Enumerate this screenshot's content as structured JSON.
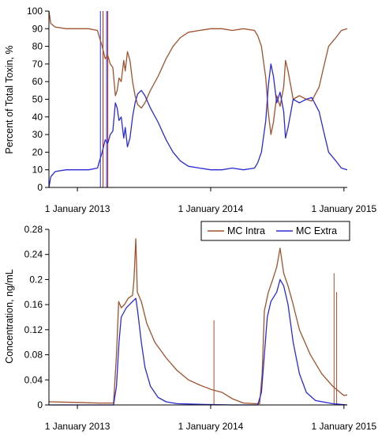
{
  "chart_data": [
    {
      "type": "line",
      "ylabel": "Percent of Total Toxin, %",
      "xlabel": "",
      "x_tick_labels": [
        "1 January 2013",
        "1 January 2014",
        "1 January 2015"
      ],
      "x_ticks": [
        "2013-01-01",
        "2014-01-01",
        "2015-01-01"
      ],
      "x_range": [
        "2012-10-15",
        "2015-01-10"
      ],
      "ylim": [
        0,
        100
      ],
      "y_ticks": [
        0,
        10,
        20,
        30,
        40,
        50,
        60,
        70,
        80,
        90,
        100
      ],
      "grid": false,
      "series": [
        {
          "name": "MC Intra",
          "color": "#a0522d",
          "points": [
            [
              "2012-10-15",
              100
            ],
            [
              "2012-10-20",
              93
            ],
            [
              "2012-11-01",
              91
            ],
            [
              "2012-12-01",
              90
            ],
            [
              "2013-01-01",
              90
            ],
            [
              "2013-02-01",
              90
            ],
            [
              "2013-02-25",
              89
            ],
            [
              "2013-03-01",
              86
            ],
            [
              "2013-03-10",
              80
            ],
            [
              "2013-03-18",
              73
            ],
            [
              "2013-03-25",
              75
            ],
            [
              "2013-04-01",
              70
            ],
            [
              "2013-04-08",
              68
            ],
            [
              "2013-04-15",
              52
            ],
            [
              "2013-04-20",
              55
            ],
            [
              "2013-04-25",
              62
            ],
            [
              "2013-05-01",
              60
            ],
            [
              "2013-05-08",
              72
            ],
            [
              "2013-05-12",
              66
            ],
            [
              "2013-05-18",
              77
            ],
            [
              "2013-05-25",
              72
            ],
            [
              "2013-06-01",
              60
            ],
            [
              "2013-06-08",
              52
            ],
            [
              "2013-06-15",
              47
            ],
            [
              "2013-06-25",
              45
            ],
            [
              "2013-07-05",
              48
            ],
            [
              "2013-07-20",
              55
            ],
            [
              "2013-08-10",
              63
            ],
            [
              "2013-09-01",
              73
            ],
            [
              "2013-09-20",
              80
            ],
            [
              "2013-10-10",
              85
            ],
            [
              "2013-11-01",
              88
            ],
            [
              "2013-12-01",
              89
            ],
            [
              "2014-01-01",
              90
            ],
            [
              "2014-02-01",
              90
            ],
            [
              "2014-03-01",
              89
            ],
            [
              "2014-04-01",
              90
            ],
            [
              "2014-05-01",
              89
            ],
            [
              "2014-05-10",
              86
            ],
            [
              "2014-05-20",
              80
            ],
            [
              "2014-06-01",
              62
            ],
            [
              "2014-06-08",
              42
            ],
            [
              "2014-06-15",
              30
            ],
            [
              "2014-06-22",
              37
            ],
            [
              "2014-07-01",
              52
            ],
            [
              "2014-07-10",
              46
            ],
            [
              "2014-07-20",
              57
            ],
            [
              "2014-07-25",
              72
            ],
            [
              "2014-08-01",
              66
            ],
            [
              "2014-08-08",
              58
            ],
            [
              "2014-08-15",
              50
            ],
            [
              "2014-09-01",
              52
            ],
            [
              "2014-09-20",
              50
            ],
            [
              "2014-10-05",
              49
            ],
            [
              "2014-10-15",
              53
            ],
            [
              "2014-10-25",
              57
            ],
            [
              "2014-11-05",
              67
            ],
            [
              "2014-11-20",
              80
            ],
            [
              "2014-12-10",
              85
            ],
            [
              "2014-12-25",
              89
            ],
            [
              "2015-01-10",
              90
            ]
          ]
        },
        {
          "name": "MC Extra",
          "color": "#2b2bd6",
          "points": [
            [
              "2012-10-15",
              0
            ],
            [
              "2012-10-20",
              6
            ],
            [
              "2012-11-01",
              9
            ],
            [
              "2012-12-01",
              10
            ],
            [
              "2013-01-01",
              10
            ],
            [
              "2013-02-01",
              10
            ],
            [
              "2013-02-25",
              11
            ],
            [
              "2013-03-01",
              14
            ],
            [
              "2013-03-10",
              20
            ],
            [
              "2013-03-18",
              27
            ],
            [
              "2013-03-25",
              25
            ],
            [
              "2013-04-01",
              30
            ],
            [
              "2013-04-08",
              32
            ],
            [
              "2013-04-15",
              48
            ],
            [
              "2013-04-20",
              45
            ],
            [
              "2013-04-25",
              38
            ],
            [
              "2013-05-01",
              40
            ],
            [
              "2013-05-08",
              28
            ],
            [
              "2013-05-12",
              34
            ],
            [
              "2013-05-18",
              23
            ],
            [
              "2013-05-25",
              28
            ],
            [
              "2013-06-01",
              40
            ],
            [
              "2013-06-08",
              48
            ],
            [
              "2013-06-15",
              53
            ],
            [
              "2013-06-25",
              55
            ],
            [
              "2013-07-05",
              52
            ],
            [
              "2013-07-20",
              45
            ],
            [
              "2013-08-10",
              37
            ],
            [
              "2013-09-01",
              27
            ],
            [
              "2013-09-20",
              20
            ],
            [
              "2013-10-10",
              15
            ],
            [
              "2013-11-01",
              12
            ],
            [
              "2013-12-01",
              11
            ],
            [
              "2014-01-01",
              10
            ],
            [
              "2014-02-01",
              10
            ],
            [
              "2014-03-01",
              11
            ],
            [
              "2014-04-01",
              10
            ],
            [
              "2014-05-01",
              11
            ],
            [
              "2014-05-10",
              14
            ],
            [
              "2014-05-20",
              20
            ],
            [
              "2014-06-01",
              38
            ],
            [
              "2014-06-08",
              58
            ],
            [
              "2014-06-15",
              70
            ],
            [
              "2014-06-22",
              63
            ],
            [
              "2014-07-01",
              48
            ],
            [
              "2014-07-10",
              54
            ],
            [
              "2014-07-20",
              43
            ],
            [
              "2014-07-25",
              28
            ],
            [
              "2014-08-01",
              34
            ],
            [
              "2014-08-08",
              42
            ],
            [
              "2014-08-15",
              50
            ],
            [
              "2014-09-01",
              48
            ],
            [
              "2014-09-20",
              50
            ],
            [
              "2014-10-05",
              51
            ],
            [
              "2014-10-15",
              47
            ],
            [
              "2014-10-25",
              43
            ],
            [
              "2014-11-05",
              33
            ],
            [
              "2014-11-20",
              20
            ],
            [
              "2014-12-10",
              15
            ],
            [
              "2014-12-25",
              11
            ],
            [
              "2015-01-10",
              10
            ]
          ]
        }
      ],
      "vertical_lines": [
        {
          "x": "2013-03-05",
          "color": "#2b2bd6"
        },
        {
          "x": "2013-03-12",
          "color": "#cc2222"
        },
        {
          "x": "2013-03-22",
          "color": "#2b2bd6"
        },
        {
          "x": "2013-03-25",
          "color": "#cc2222"
        }
      ]
    },
    {
      "type": "line",
      "ylabel": "Concentration, ng/mL",
      "xlabel": "",
      "x_tick_labels": [
        "1 January 2013",
        "1 January 2014",
        "1 January 2015"
      ],
      "x_ticks": [
        "2013-01-01",
        "2014-01-01",
        "2015-01-01"
      ],
      "x_range": [
        "2012-10-15",
        "2015-01-10"
      ],
      "ylim": [
        0,
        0.28
      ],
      "y_ticks": [
        "0",
        "0.04",
        "0.08",
        "0.12",
        "0.16",
        "0.2",
        "0.24",
        "0.28"
      ],
      "grid": false,
      "legend": {
        "position": "top-right",
        "entries": [
          {
            "label": "MC Intra",
            "color": "#a0522d"
          },
          {
            "label": "MC Extra",
            "color": "#2b2bd6"
          }
        ]
      },
      "series": [
        {
          "name": "MC Intra",
          "color": "#a0522d",
          "points": [
            [
              "2012-10-15",
              0.005
            ],
            [
              "2013-01-01",
              0.004
            ],
            [
              "2013-03-01",
              0.003
            ],
            [
              "2013-04-10",
              0.003
            ],
            [
              "2013-04-18",
              0.08
            ],
            [
              "2013-04-24",
              0.165
            ],
            [
              "2013-05-01",
              0.155
            ],
            [
              "2013-05-10",
              0.16
            ],
            [
              "2013-05-20",
              0.17
            ],
            [
              "2013-06-01",
              0.175
            ],
            [
              "2013-06-05",
              0.2
            ],
            [
              "2013-06-10",
              0.265
            ],
            [
              "2013-06-14",
              0.18
            ],
            [
              "2013-06-25",
              0.165
            ],
            [
              "2013-07-10",
              0.13
            ],
            [
              "2013-08-01",
              0.1
            ],
            [
              "2013-09-01",
              0.075
            ],
            [
              "2013-10-01",
              0.055
            ],
            [
              "2013-11-01",
              0.04
            ],
            [
              "2013-12-01",
              0.032
            ],
            [
              "2014-01-01",
              0.025
            ],
            [
              "2014-02-01",
              0.02
            ],
            [
              "2014-03-01",
              0.01
            ],
            [
              "2014-04-01",
              0.003
            ],
            [
              "2014-05-01",
              0.002
            ],
            [
              "2014-05-15",
              0.002
            ],
            [
              "2014-05-22",
              0.05
            ],
            [
              "2014-05-28",
              0.15
            ],
            [
              "2014-06-08",
              0.18
            ],
            [
              "2014-06-20",
              0.2
            ],
            [
              "2014-07-01",
              0.22
            ],
            [
              "2014-07-10",
              0.25
            ],
            [
              "2014-07-20",
              0.21
            ],
            [
              "2014-08-01",
              0.19
            ],
            [
              "2014-08-15",
              0.16
            ],
            [
              "2014-09-01",
              0.12
            ],
            [
              "2014-10-01",
              0.08
            ],
            [
              "2014-11-01",
              0.05
            ],
            [
              "2014-12-01",
              0.03
            ],
            [
              "2015-01-01",
              0.015
            ],
            [
              "2015-01-10",
              0.016
            ]
          ]
        },
        {
          "name": "MC Extra",
          "color": "#2b2bd6",
          "points": [
            [
              "2012-10-15",
              0.0
            ],
            [
              "2013-01-01",
              0.0
            ],
            [
              "2013-04-10",
              0.0
            ],
            [
              "2013-04-18",
              0.03
            ],
            [
              "2013-04-25",
              0.1
            ],
            [
              "2013-05-01",
              0.14
            ],
            [
              "2013-05-15",
              0.155
            ],
            [
              "2013-06-01",
              0.165
            ],
            [
              "2013-06-10",
              0.17
            ],
            [
              "2013-06-15",
              0.15
            ],
            [
              "2013-06-25",
              0.1
            ],
            [
              "2013-07-05",
              0.06
            ],
            [
              "2013-07-20",
              0.03
            ],
            [
              "2013-08-10",
              0.012
            ],
            [
              "2013-09-01",
              0.005
            ],
            [
              "2013-10-01",
              0.002
            ],
            [
              "2013-12-01",
              0.001
            ],
            [
              "2014-03-01",
              0.0
            ],
            [
              "2014-05-10",
              0.0
            ],
            [
              "2014-05-20",
              0.02
            ],
            [
              "2014-05-28",
              0.08
            ],
            [
              "2014-06-05",
              0.14
            ],
            [
              "2014-06-15",
              0.165
            ],
            [
              "2014-07-01",
              0.18
            ],
            [
              "2014-07-10",
              0.2
            ],
            [
              "2014-07-20",
              0.19
            ],
            [
              "2014-08-01",
              0.16
            ],
            [
              "2014-08-15",
              0.1
            ],
            [
              "2014-09-01",
              0.05
            ],
            [
              "2014-09-20",
              0.02
            ],
            [
              "2014-10-15",
              0.007
            ],
            [
              "2014-12-01",
              0.002
            ],
            [
              "2015-01-10",
              0.0
            ]
          ]
        }
      ],
      "vertical_lines": [
        {
          "x": "2014-01-10",
          "color": "#a0522d",
          "y_top": 0.135
        },
        {
          "x": "2014-12-05",
          "color": "#a0522d",
          "y_top": 0.21
        },
        {
          "x": "2014-12-12",
          "color": "#a0522d",
          "y_top": 0.18
        }
      ]
    }
  ]
}
